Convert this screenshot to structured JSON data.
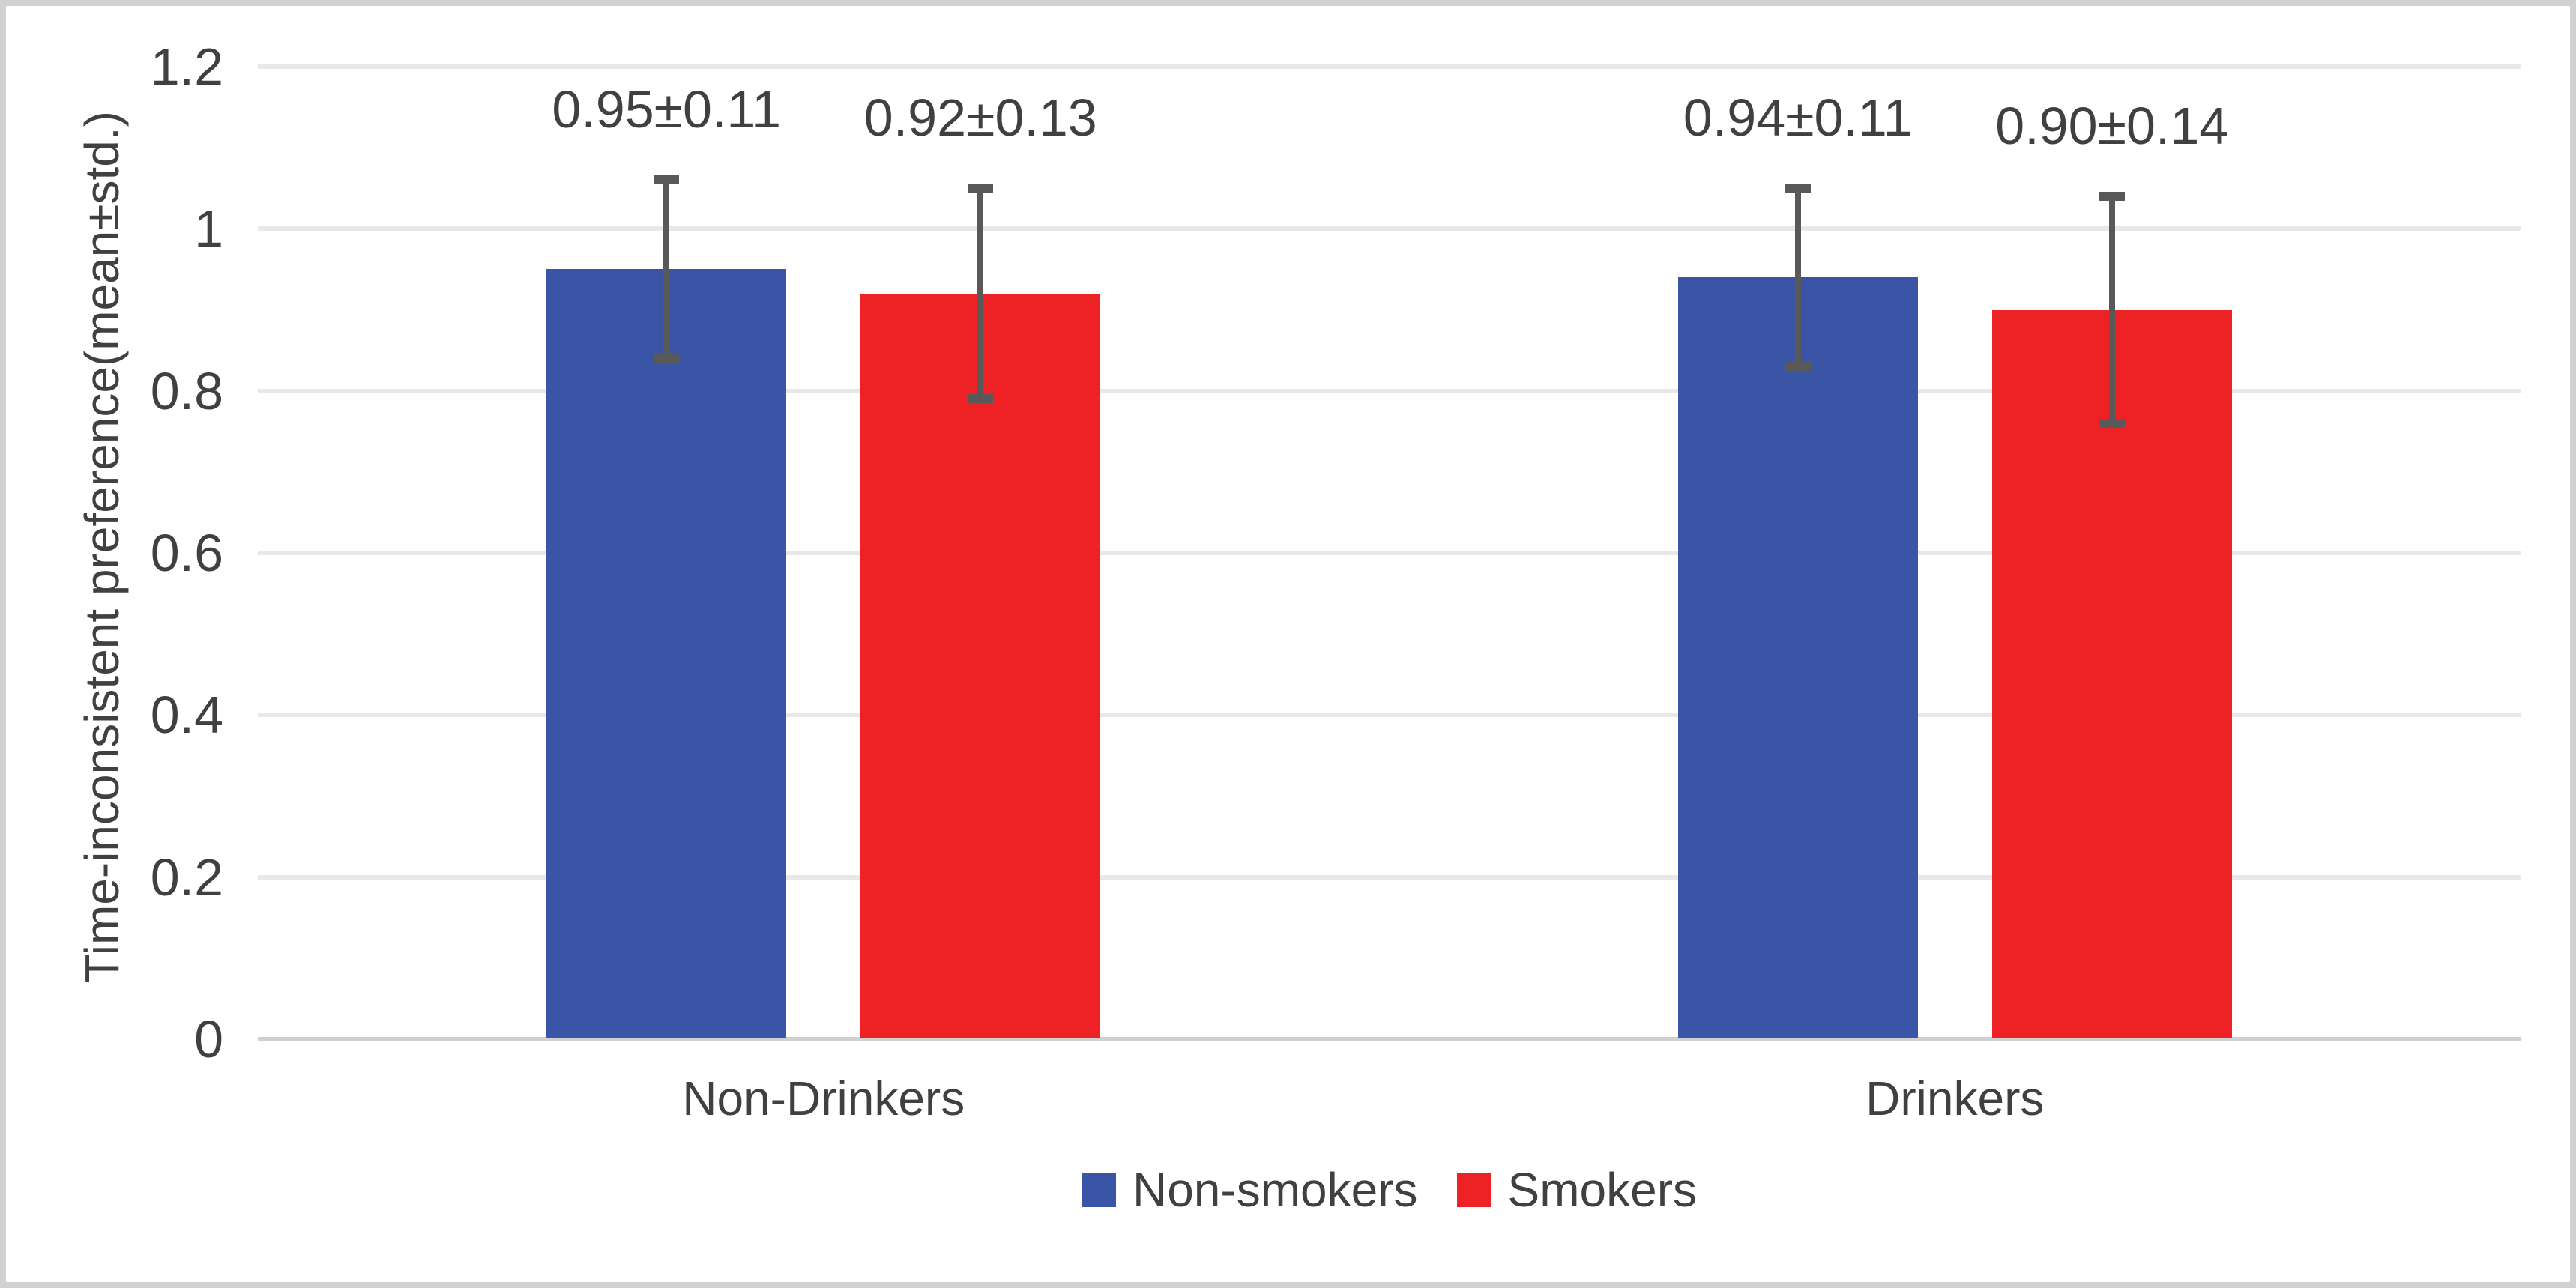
{
  "chart_data": {
    "type": "bar",
    "title": "",
    "ylabel": "Time-inconsistent preference(mean±std.)",
    "xlabel": "",
    "categories": [
      "Non-Drinkers",
      "Drinkers"
    ],
    "series": [
      {
        "name": "Non-smokers",
        "color": "#3a55a5",
        "values": [
          0.95,
          0.94
        ],
        "errors": [
          0.11,
          0.11
        ],
        "data_labels": [
          "0.95±0.11",
          "0.94±0.11"
        ]
      },
      {
        "name": "Smokers",
        "color": "#ee2125",
        "values": [
          0.92,
          0.9
        ],
        "errors": [
          0.13,
          0.14
        ],
        "data_labels": [
          "0.92±0.13",
          "0.90±0.14"
        ]
      }
    ],
    "y_ticks": [
      {
        "value": 0,
        "label": "0"
      },
      {
        "value": 0.2,
        "label": "0.2"
      },
      {
        "value": 0.4,
        "label": "0.4"
      },
      {
        "value": 0.6,
        "label": "0.6"
      },
      {
        "value": 0.8,
        "label": "0.8"
      },
      {
        "value": 1,
        "label": "1"
      },
      {
        "value": 1.2,
        "label": "1.2"
      }
    ],
    "ylim": [
      0,
      1.2
    ],
    "grid": true,
    "legend_position": "bottom",
    "error_bar_color": "#595959",
    "gridline_color": "#e8e8e8",
    "axis_line_color": "#d0d0d0",
    "text_color": "#404040"
  }
}
